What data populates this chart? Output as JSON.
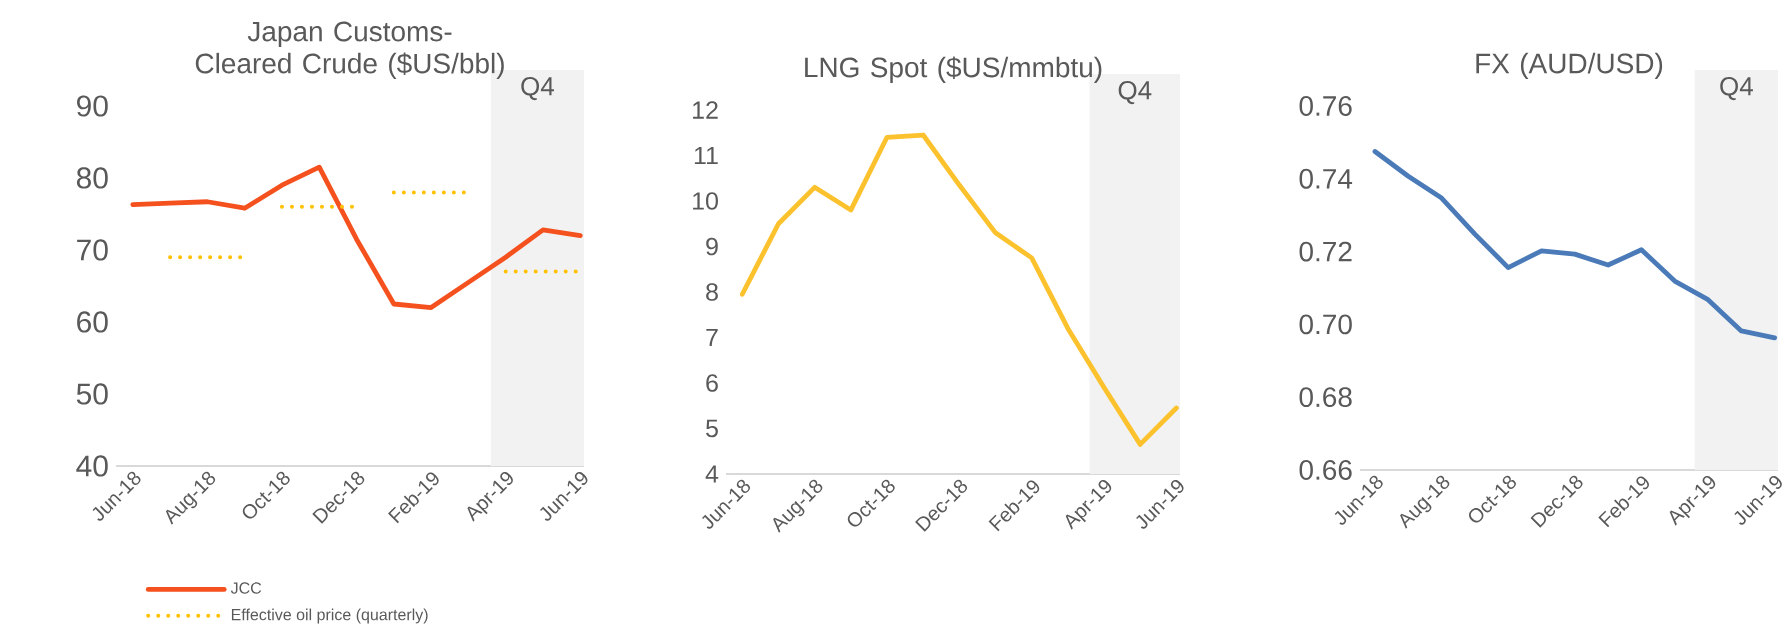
{
  "chart_data": [
    {
      "type": "line",
      "title": "Japan Customs-Cleared Crude ($US/bbl)",
      "categories": [
        "Jun-18",
        null,
        "Aug-18",
        null,
        "Oct-18",
        null,
        "Dec-18",
        null,
        "Feb-19",
        null,
        "Apr-19",
        null,
        "Jun-19"
      ],
      "series": [
        {
          "name": "JCC",
          "color": "#f4511e",
          "line_style": "solid",
          "values": [
            76.3,
            76.5,
            76.7,
            75.8,
            79.0,
            81.5,
            71.5,
            62.5,
            62.0,
            65.5,
            69.0,
            72.8,
            72.0
          ]
        },
        {
          "name": "Effective oil price (quarterly)",
          "color": "#ffc000",
          "line_style": "dotted",
          "values": [
            null,
            69,
            69,
            69,
            null,
            null,
            null,
            null,
            null,
            null,
            null,
            null,
            null
          ]
        },
        {
          "color": "#ffc000",
          "line_style": "dotted",
          "values": [
            null,
            null,
            null,
            null,
            76,
            76,
            76,
            null,
            null,
            null,
            null,
            null,
            null
          ]
        },
        {
          "color": "#ffc000",
          "line_style": "dotted",
          "values": [
            null,
            null,
            null,
            null,
            null,
            null,
            null,
            78,
            78,
            78,
            null,
            null,
            null
          ]
        },
        {
          "color": "#ffc000",
          "line_style": "dotted",
          "values": [
            null,
            null,
            null,
            null,
            null,
            null,
            null,
            null,
            null,
            null,
            67,
            67,
            67
          ]
        }
      ],
      "ylim": [
        40,
        90
      ],
      "yticks": [
        40,
        50,
        60,
        70,
        80,
        90
      ],
      "bands": [
        {
          "axis": "x",
          "from": "Apr-19",
          "to": "Jun-19",
          "label": "Q4",
          "color": "#f2f2f2"
        }
      ],
      "legend": "bottom"
    },
    {
      "type": "line",
      "title": "LNG Spot ($US/mmbtu)",
      "categories": [
        "Jun-18",
        null,
        "Aug-18",
        null,
        "Oct-18",
        null,
        "Dec-18",
        null,
        "Feb-19",
        null,
        "Apr-19",
        null,
        "Jun-19"
      ],
      "series": [
        {
          "color": "#fcc22e",
          "line_style": "solid",
          "values": [
            7.95,
            9.5,
            10.3,
            9.8,
            11.4,
            11.45,
            10.35,
            9.3,
            8.75,
            7.2,
            5.9,
            4.65,
            5.45
          ]
        }
      ],
      "ylim": [
        4,
        12
      ],
      "yticks": [
        4,
        5,
        6,
        7,
        8,
        9,
        10,
        11,
        12
      ],
      "bands": [
        {
          "axis": "x",
          "from": "Apr-19",
          "to": "Jun-19",
          "label": "Q4",
          "color": "#f2f2f2"
        }
      ]
    },
    {
      "type": "line",
      "title": "FX (AUD/USD)",
      "categories": [
        "Jun-18",
        null,
        "Aug-18",
        null,
        "Oct-18",
        null,
        "Dec-18",
        null,
        "Feb-19",
        null,
        "Apr-19",
        null,
        "Jun-19"
      ],
      "series": [
        {
          "color": "#4a7ab8",
          "line_style": "solid",
          "values": [
            0.7475,
            0.7407,
            0.7347,
            0.7248,
            0.7156,
            0.7202,
            0.7193,
            0.7163,
            0.7205,
            0.7119,
            0.7068,
            0.6982,
            0.6963
          ]
        }
      ],
      "ylim": [
        0.66,
        0.76
      ],
      "yticks": [
        0.66,
        0.68,
        {
          "value": 0.7,
          "label": "0.70"
        },
        0.72,
        0.74,
        0.76
      ],
      "bands": [
        {
          "axis": "x",
          "from": "Apr-19",
          "to": "Jun-19",
          "label": "Q4",
          "color": "#f2f2f2"
        }
      ]
    }
  ]
}
